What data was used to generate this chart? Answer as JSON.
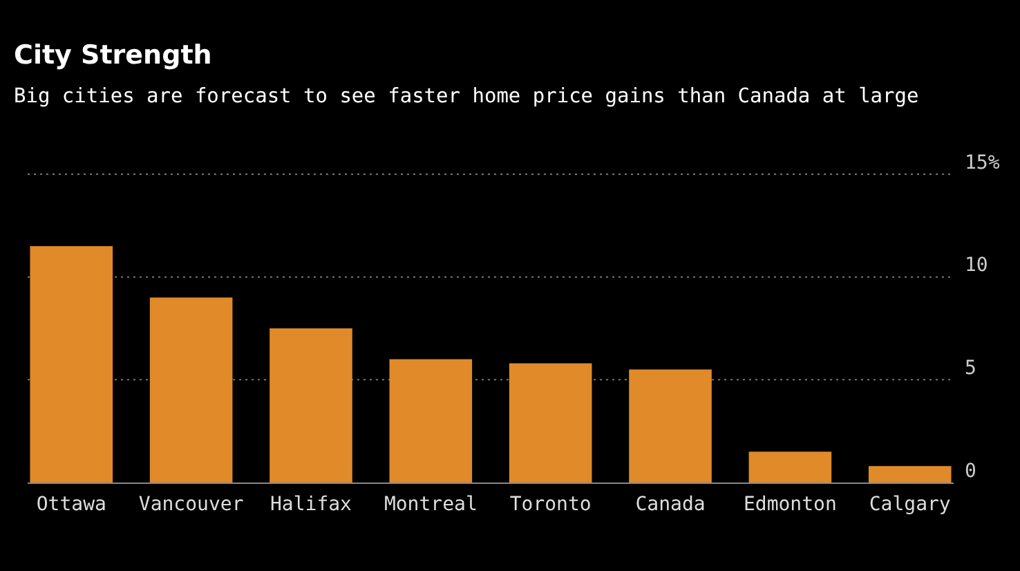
{
  "chart_data": {
    "type": "bar",
    "title": "City Strength",
    "subtitle": "Big cities are forecast to see faster home price gains than Canada at large",
    "categories": [
      "Ottawa",
      "Vancouver",
      "Halifax",
      "Montreal",
      "Toronto",
      "Canada",
      "Edmonton",
      "Calgary"
    ],
    "values": [
      11.5,
      9.0,
      7.5,
      6.0,
      5.8,
      5.5,
      1.5,
      0.8
    ],
    "color": "#e08a2a",
    "ylim": [
      0,
      15
    ],
    "yticks": [
      0,
      5,
      10,
      {
        "value": 15,
        "label": "15%"
      }
    ],
    "grid": "y"
  }
}
